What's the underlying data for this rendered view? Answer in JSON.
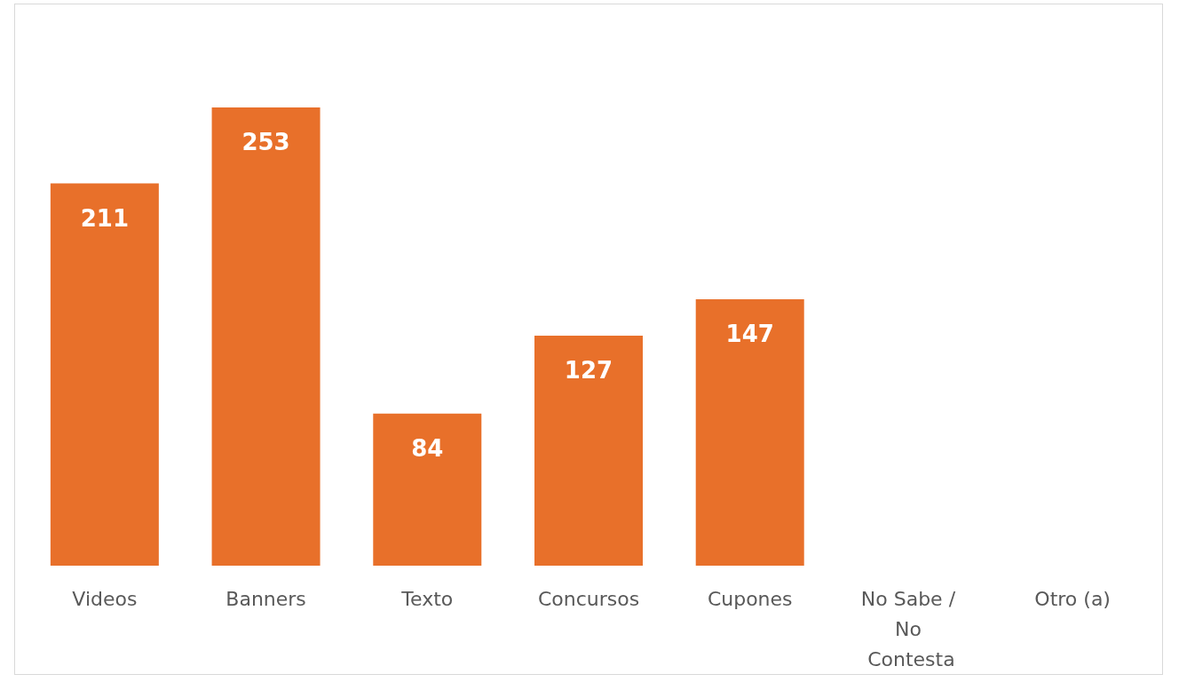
{
  "chart_data": {
    "type": "bar",
    "categories": [
      "Videos",
      "Banners",
      "Texto",
      "Concursos",
      "Cupones",
      "No Sabe / No Contesta",
      "Otro (a)"
    ],
    "values": [
      211,
      253,
      84,
      127,
      147,
      null,
      null
    ],
    "color": "#e8702a",
    "data_labels": true
  }
}
